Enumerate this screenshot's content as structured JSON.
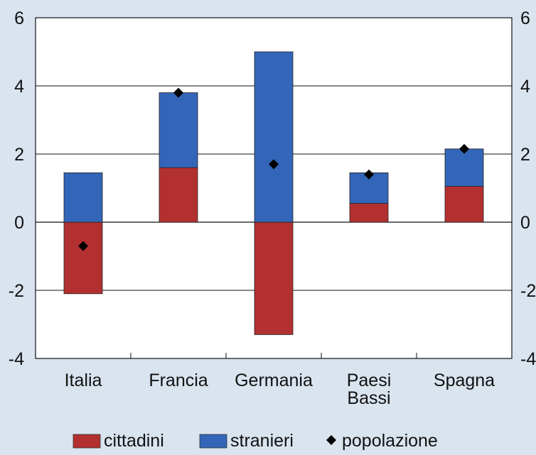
{
  "chart_data": {
    "type": "bar",
    "stacked": true,
    "categories": [
      "Italia",
      "Francia",
      "Germania",
      "Paesi Bassi",
      "Spagna"
    ],
    "category_lines": [
      [
        "Italia"
      ],
      [
        "Francia"
      ],
      [
        "Germania"
      ],
      [
        "Paesi",
        "Bassi"
      ],
      [
        "Spagna"
      ]
    ],
    "series": [
      {
        "name": "cittadini",
        "kind": "bar",
        "color": "#b33030",
        "values": [
          -2.1,
          1.6,
          -3.3,
          0.55,
          1.05
        ]
      },
      {
        "name": "stranieri",
        "kind": "bar",
        "color": "#3366b8",
        "values": [
          1.45,
          2.2,
          5.0,
          0.9,
          1.1
        ]
      },
      {
        "name": "popolazione",
        "kind": "marker",
        "marker": "diamond",
        "color": "#000000",
        "values": [
          -0.7,
          3.8,
          1.7,
          1.4,
          2.15
        ]
      }
    ],
    "ylim": [
      -4,
      6
    ],
    "yticks": [
      -4,
      -2,
      0,
      2,
      4,
      6
    ],
    "secondary_y_axis": true,
    "grid": "horizontal",
    "legend_position": "bottom"
  },
  "legend": {
    "cittadini": "cittadini",
    "stranieri": "stranieri",
    "popolazione": "popolazione"
  }
}
